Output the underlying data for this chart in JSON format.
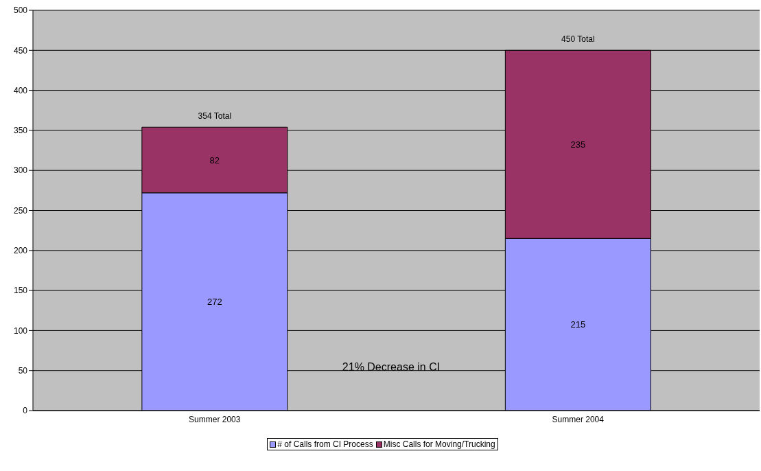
{
  "chart_data": {
    "type": "bar",
    "stacked": true,
    "categories": [
      "Summer 2003",
      "Summer 2004"
    ],
    "series": [
      {
        "name": "# of Calls from CI Process",
        "color": "#9999ff",
        "values": [
          272,
          215
        ]
      },
      {
        "name": "Misc Calls for Moving/Trucking",
        "color": "#993366",
        "values": [
          82,
          235
        ]
      }
    ],
    "ylim": [
      0,
      500
    ],
    "yticks": [
      0,
      50,
      100,
      150,
      200,
      250,
      300,
      350,
      400,
      450,
      500
    ],
    "grid": "y",
    "legend": "bottom",
    "data_labels": true,
    "totals": [
      "354 Total",
      "450 Total"
    ],
    "annotations": [
      "21% Decrease in CI"
    ]
  }
}
